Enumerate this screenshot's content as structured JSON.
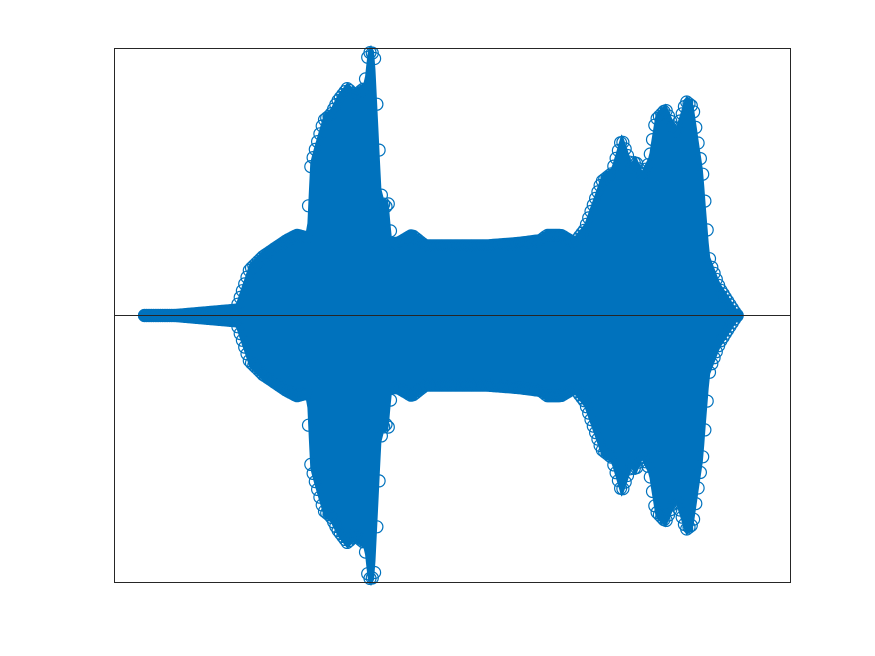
{
  "chart_data": {
    "type": "scatter",
    "title": "",
    "xlabel": "",
    "ylabel": "",
    "xlim": [
      0,
      1
    ],
    "ylim": [
      -1,
      1
    ],
    "grid": false,
    "legend": "none",
    "baseline": 0,
    "marker": "circle",
    "colors": {
      "series": "#0072bd",
      "axes": "#262626",
      "background": "#ffffff"
    },
    "series": [
      {
        "x": [
          0.045,
          0.09,
          0.18,
          0.2,
          0.22,
          0.255,
          0.27,
          0.285,
          0.29,
          0.295,
          0.31,
          0.32,
          0.33,
          0.345,
          0.355,
          0.37,
          0.375,
          0.38,
          0.385,
          0.39,
          0.395,
          0.4,
          0.405,
          0.41,
          0.42,
          0.44,
          0.46,
          0.5,
          0.55,
          0.6,
          0.63,
          0.64,
          0.66,
          0.68,
          0.695,
          0.72,
          0.735,
          0.75,
          0.765,
          0.77,
          0.78,
          0.79,
          0.8,
          0.815,
          0.83,
          0.845,
          0.855,
          0.87,
          0.88,
          0.895,
          0.92
        ],
        "upper": [
          0.0,
          0.0,
          0.02,
          0.17,
          0.22,
          0.28,
          0.3,
          0.29,
          0.55,
          0.6,
          0.73,
          0.75,
          0.8,
          0.85,
          0.82,
          0.85,
          0.97,
          0.99,
          0.96,
          0.7,
          0.45,
          0.4,
          0.42,
          0.27,
          0.27,
          0.3,
          0.26,
          0.26,
          0.26,
          0.27,
          0.28,
          0.3,
          0.3,
          0.27,
          0.32,
          0.5,
          0.53,
          0.66,
          0.55,
          0.58,
          0.52,
          0.57,
          0.73,
          0.77,
          0.68,
          0.8,
          0.78,
          0.52,
          0.2,
          0.1,
          0.0
        ],
        "lower": [
          0.0,
          0.0,
          -0.02,
          -0.17,
          -0.22,
          -0.28,
          -0.3,
          -0.29,
          -0.55,
          -0.6,
          -0.73,
          -0.75,
          -0.8,
          -0.85,
          -0.82,
          -0.85,
          -0.97,
          -0.99,
          -0.96,
          -0.7,
          -0.45,
          -0.4,
          -0.42,
          -0.27,
          -0.27,
          -0.3,
          -0.26,
          -0.26,
          -0.26,
          -0.27,
          -0.28,
          -0.3,
          -0.3,
          -0.27,
          -0.32,
          -0.5,
          -0.53,
          -0.66,
          -0.55,
          -0.58,
          -0.52,
          -0.57,
          -0.73,
          -0.77,
          -0.68,
          -0.8,
          -0.78,
          -0.52,
          -0.2,
          -0.1,
          0.0
        ]
      }
    ]
  }
}
